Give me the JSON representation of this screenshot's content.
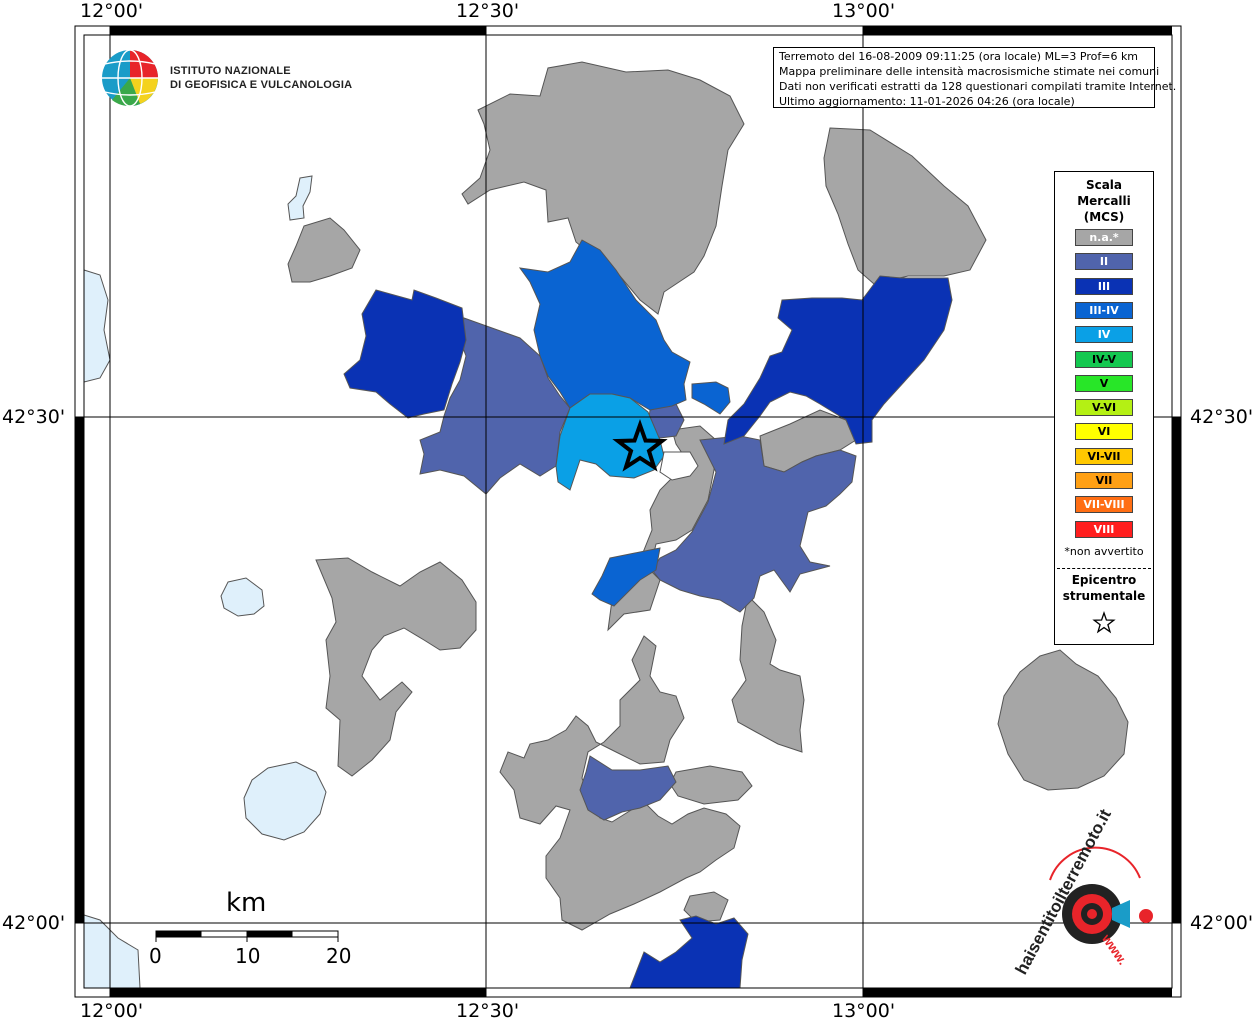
{
  "map": {
    "lon_labels": [
      "12°00'",
      "12°30'",
      "13°00'"
    ],
    "lat_labels": [
      "42°30'",
      "42°00'"
    ],
    "extent": {
      "lon": [
        11.97,
        13.42
      ],
      "lat": [
        41.95,
        42.93
      ]
    }
  },
  "institute": {
    "line1": "ISTITUTO NAZIONALE",
    "line2": "DI GEOFISICA E VULCANOLOGIA"
  },
  "info": {
    "line1": "Terremoto del 16-08-2009 09:11:25 (ora locale) ML=3 Prof=6 km",
    "line2": "Mappa preliminare delle intensità macrosismiche stimate nei comuni",
    "line3": "Dati non verificati estratti da 128 questionari compilati tramite Internet.",
    "line4": "Ultimo aggiornamento: 11-01-2026 04:26 (ora locale)"
  },
  "legend": {
    "title": [
      "Scala",
      "Mercalli",
      "(MCS)"
    ],
    "items": [
      {
        "label": "n.a.*",
        "color": "#a6a6a6"
      },
      {
        "label": "II",
        "color": "#5064ac"
      },
      {
        "label": "III",
        "color": "#0a32b4"
      },
      {
        "label": "III-IV",
        "color": "#0a64d2"
      },
      {
        "label": "IV",
        "color": "#0aa0e6"
      },
      {
        "label": "IV-V",
        "color": "#14c850"
      },
      {
        "label": "V",
        "color": "#28e628"
      },
      {
        "label": "V-VI",
        "color": "#b4f014"
      },
      {
        "label": "VI",
        "color": "#ffff00"
      },
      {
        "label": "VI-VII",
        "color": "#ffc800"
      },
      {
        "label": "VII",
        "color": "#ffa014"
      },
      {
        "label": "VII-VIII",
        "color": "#ff6e14"
      },
      {
        "label": "VIII",
        "color": "#ff1e1e"
      }
    ],
    "note": "*non avvertito",
    "epicenter_label": [
      "Epicentro",
      "strumentale"
    ]
  },
  "scale": {
    "unit": "km",
    "ticks": [
      "0",
      "10",
      "20"
    ]
  },
  "brand": {
    "text": "haisentitoilterremoto.it",
    "url": "www."
  }
}
